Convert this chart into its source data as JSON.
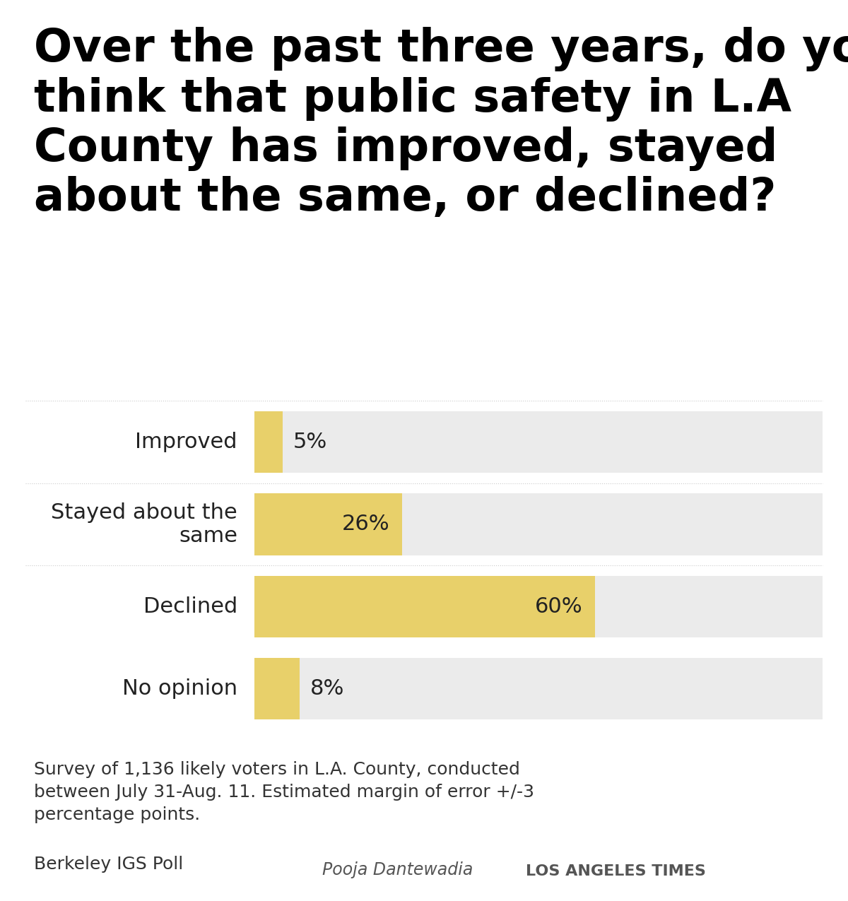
{
  "title": "Over the past three years, do you\nthink that public safety in L.A\nCounty has improved, stayed\nabout the same, or declined?",
  "categories": [
    "Improved",
    "Stayed about the\nsame",
    "Declined",
    "No opinion"
  ],
  "values": [
    5,
    26,
    60,
    8
  ],
  "bar_color": "#E8D06A",
  "bar_bg_color": "#EBEBEB",
  "label_color": "#222222",
  "title_color": "#000000",
  "bg_color": "#FFFFFF",
  "footnote1": "Survey of 1,136 likely voters in L.A. County, conducted\nbetween July 31-Aug. 11. Estimated margin of error +/-3\npercentage points.",
  "footnote2": "Berkeley IGS Poll",
  "credit_name": "Pooja Dantewadia",
  "credit_org": "LOS ANGELES TIMES",
  "xlim": [
    0,
    100
  ],
  "title_fontsize": 46,
  "category_fontsize": 22,
  "value_fontsize": 22,
  "footnote_fontsize": 18,
  "credit_fontsize": 17
}
